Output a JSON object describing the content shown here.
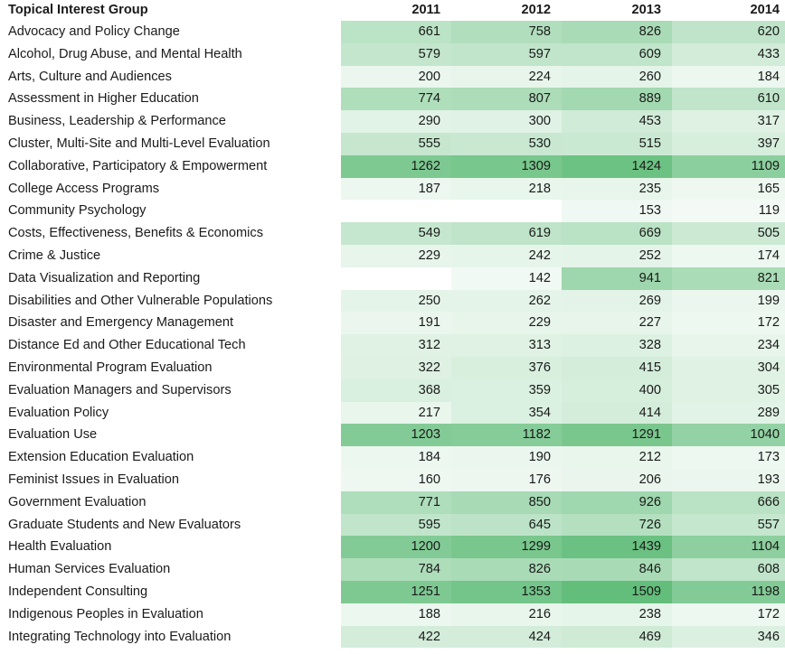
{
  "chart_data": {
    "type": "heatmap",
    "header": "Topical Interest Group",
    "years": [
      "2011",
      "2012",
      "2013",
      "2014"
    ],
    "rows": [
      {
        "name": "Advocacy and Policy Change",
        "values": [
          661,
          758,
          826,
          620
        ]
      },
      {
        "name": "Alcohol, Drug Abuse, and Mental Health",
        "values": [
          579,
          597,
          609,
          433
        ]
      },
      {
        "name": "Arts, Culture and Audiences",
        "values": [
          200,
          224,
          260,
          184
        ]
      },
      {
        "name": "Assessment in Higher Education",
        "values": [
          774,
          807,
          889,
          610
        ]
      },
      {
        "name": "Business, Leadership & Performance",
        "values": [
          290,
          300,
          453,
          317
        ]
      },
      {
        "name": "Cluster, Multi-Site and Multi-Level Evaluation",
        "values": [
          555,
          530,
          515,
          397
        ]
      },
      {
        "name": "Collaborative, Participatory & Empowerment",
        "values": [
          1262,
          1309,
          1424,
          1109
        ]
      },
      {
        "name": "College Access Programs",
        "values": [
          187,
          218,
          235,
          165
        ]
      },
      {
        "name": "Community Psychology",
        "values": [
          null,
          null,
          153,
          119
        ]
      },
      {
        "name": "Costs, Effectiveness, Benefits & Economics",
        "values": [
          549,
          619,
          669,
          505
        ]
      },
      {
        "name": "Crime & Justice",
        "values": [
          229,
          242,
          252,
          174
        ]
      },
      {
        "name": "Data Visualization and Reporting",
        "values": [
          null,
          142,
          941,
          821
        ]
      },
      {
        "name": "Disabilities and Other Vulnerable Populations",
        "values": [
          250,
          262,
          269,
          199
        ]
      },
      {
        "name": "Disaster and Emergency Management",
        "values": [
          191,
          229,
          227,
          172
        ]
      },
      {
        "name": "Distance Ed and Other Educational Tech",
        "values": [
          312,
          313,
          328,
          234
        ]
      },
      {
        "name": "Environmental Program Evaluation",
        "values": [
          322,
          376,
          415,
          304
        ]
      },
      {
        "name": "Evaluation Managers and Supervisors",
        "values": [
          368,
          359,
          400,
          305
        ]
      },
      {
        "name": "Evaluation Policy",
        "values": [
          217,
          354,
          414,
          289
        ]
      },
      {
        "name": "Evaluation Use",
        "values": [
          1203,
          1182,
          1291,
          1040
        ]
      },
      {
        "name": "Extension Education Evaluation",
        "values": [
          184,
          190,
          212,
          173
        ]
      },
      {
        "name": "Feminist Issues in Evaluation",
        "values": [
          160,
          176,
          206,
          193
        ]
      },
      {
        "name": "Government Evaluation",
        "values": [
          771,
          850,
          926,
          666
        ]
      },
      {
        "name": "Graduate Students and New Evaluators",
        "values": [
          595,
          645,
          726,
          557
        ]
      },
      {
        "name": "Health Evaluation",
        "values": [
          1200,
          1299,
          1439,
          1104
        ]
      },
      {
        "name": "Human Services Evaluation",
        "values": [
          784,
          826,
          846,
          608
        ]
      },
      {
        "name": "Independent Consulting",
        "values": [
          1251,
          1353,
          1509,
          1198
        ]
      },
      {
        "name": "Indigenous Peoples in Evaluation",
        "values": [
          188,
          216,
          238,
          172
        ]
      },
      {
        "name": "Integrating Technology into Evaluation",
        "values": [
          422,
          424,
          469,
          346
        ]
      }
    ],
    "color_scale": {
      "min_color": "#ffffff",
      "max_color": "#63be7b",
      "min_value": 0,
      "max_value": 1509
    }
  }
}
